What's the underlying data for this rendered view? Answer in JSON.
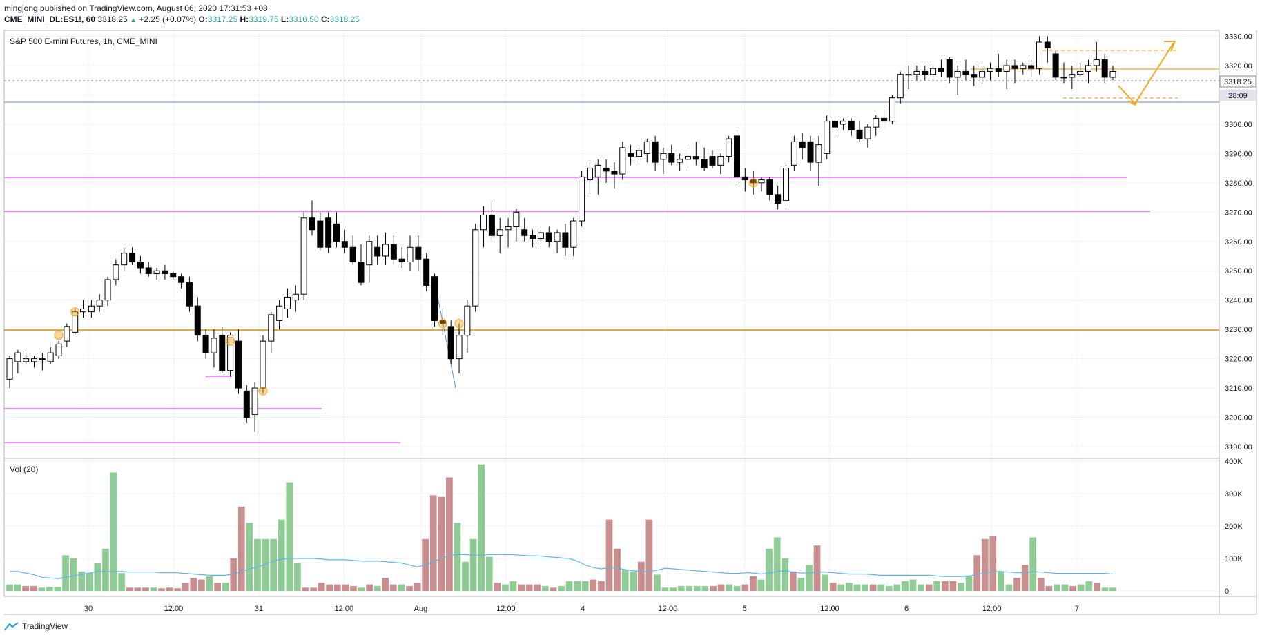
{
  "header": {
    "published_line": "mingjong published on TradingView.com, August 06, 2020 17:31:53 +08",
    "symbol": "CME_MINI_DL:ES1!, 60",
    "last_price": "3318.25",
    "change": "+2.25 (+0.07%)",
    "open_label": "O:",
    "open": "3317.25",
    "high_label": "H:",
    "high": "3319.75",
    "low_label": "L:",
    "low": "3316.50",
    "close_label": "C:",
    "close": "3318.25"
  },
  "chart_title": "S&P 500 E-mini Futures, 1h, CME_MINI",
  "volume_label": "Vol (20)",
  "footer": {
    "brand": "TradingView"
  },
  "colors": {
    "up_candle": "#ffffff",
    "down_candle": "#000000",
    "vol_up": "#8fcb95",
    "vol_down": "#c98f8f",
    "vol_ma": "#5fb4e8",
    "orange": "#f5a623",
    "magenta": "#e040fb",
    "blue_line": "#5c8ecf"
  },
  "chart_data": {
    "type": "candlestick",
    "x_tick_labels": [
      "30",
      "12:00",
      "31",
      "12:00",
      "Aug",
      "12:00",
      "4",
      "12:00",
      "5",
      "12:00",
      "6",
      "12:00",
      "7"
    ],
    "y_tick_labels": [
      "3330.00",
      "3320.00",
      "3310.00",
      "3300.00",
      "3290.00",
      "3280.00",
      "3270.00",
      "3260.00",
      "3250.00",
      "3240.00",
      "3230.00",
      "3220.00",
      "3210.00",
      "3200.00",
      "3190.00"
    ],
    "y_ticks": [
      3330,
      3320,
      3310,
      3300,
      3290,
      3280,
      3270,
      3260,
      3250,
      3240,
      3230,
      3220,
      3210,
      3200,
      3190
    ],
    "ylim": [
      3186,
      3332
    ],
    "last_price_label": "3318.25",
    "countdown_label": "28:09",
    "volume_tick_labels": [
      "400K",
      "300K",
      "200K",
      "100K",
      "0"
    ],
    "volume_ticks": [
      400000,
      300000,
      200000,
      100000,
      0
    ],
    "ohlc": [
      [
        3213,
        3221,
        3210,
        3220
      ],
      [
        3219,
        3223,
        3215,
        3222
      ],
      [
        3219,
        3222,
        3218,
        3220
      ],
      [
        3219,
        3221,
        3217,
        3220
      ],
      [
        3220,
        3222,
        3216,
        3220
      ],
      [
        3219,
        3224,
        3218,
        3222
      ],
      [
        3221,
        3226,
        3220,
        3225
      ],
      [
        3226,
        3232,
        3224,
        3231
      ],
      [
        3229,
        3237,
        3228,
        3236
      ],
      [
        3236,
        3240,
        3234,
        3237
      ],
      [
        3236,
        3240,
        3234,
        3238
      ],
      [
        3238,
        3242,
        3236,
        3240
      ],
      [
        3240,
        3248,
        3238,
        3247
      ],
      [
        3247,
        3254,
        3245,
        3252
      ],
      [
        3252,
        3258,
        3250,
        3256
      ],
      [
        3256,
        3258,
        3252,
        3253
      ],
      [
        3253,
        3255,
        3249,
        3251
      ],
      [
        3251,
        3253,
        3248,
        3249
      ],
      [
        3249,
        3251,
        3247,
        3250
      ],
      [
        3250,
        3252,
        3247,
        3249
      ],
      [
        3249,
        3250,
        3247,
        3248
      ],
      [
        3248,
        3249,
        3244,
        3246
      ],
      [
        3246,
        3248,
        3236,
        3238
      ],
      [
        3238,
        3241,
        3226,
        3228
      ],
      [
        3228,
        3230,
        3220,
        3222
      ],
      [
        3222,
        3230,
        3217,
        3227
      ],
      [
        3228,
        3231,
        3215,
        3216
      ],
      [
        3216,
        3229,
        3214,
        3228
      ],
      [
        3226,
        3230,
        3208,
        3210
      ],
      [
        3209,
        3211,
        3198,
        3200
      ],
      [
        3201,
        3212,
        3195,
        3210
      ],
      [
        3210,
        3228,
        3208,
        3226
      ],
      [
        3226,
        3236,
        3222,
        3235
      ],
      [
        3233,
        3240,
        3230,
        3238
      ],
      [
        3237,
        3244,
        3234,
        3241
      ],
      [
        3240,
        3245,
        3236,
        3242
      ],
      [
        3242,
        3270,
        3240,
        3268
      ],
      [
        3268,
        3274,
        3262,
        3264
      ],
      [
        3267,
        3270,
        3257,
        3258
      ],
      [
        3268,
        3270,
        3256,
        3258
      ],
      [
        3266,
        3270,
        3258,
        3260
      ],
      [
        3260,
        3264,
        3256,
        3258
      ],
      [
        3258,
        3262,
        3252,
        3253
      ],
      [
        3253,
        3259,
        3245,
        3246
      ],
      [
        3252,
        3262,
        3246,
        3260
      ],
      [
        3258,
        3262,
        3252,
        3255
      ],
      [
        3255,
        3263,
        3252,
        3259
      ],
      [
        3259,
        3262,
        3252,
        3254
      ],
      [
        3254,
        3258,
        3251,
        3253
      ],
      [
        3253,
        3262,
        3250,
        3258
      ],
      [
        3258,
        3262,
        3250,
        3254
      ],
      [
        3254,
        3256,
        3243,
        3245
      ],
      [
        3248,
        3249,
        3231,
        3233
      ],
      [
        3233,
        3237,
        3228,
        3232
      ],
      [
        3231,
        3233,
        3218,
        3220
      ],
      [
        3220,
        3232,
        3215,
        3228
      ],
      [
        3228,
        3240,
        3222,
        3238
      ],
      [
        3238,
        3266,
        3236,
        3264
      ],
      [
        3264,
        3272,
        3258,
        3269
      ],
      [
        3269,
        3274,
        3260,
        3262
      ],
      [
        3262,
        3268,
        3256,
        3264
      ],
      [
        3264,
        3268,
        3258,
        3265
      ],
      [
        3265,
        3271,
        3260,
        3270
      ],
      [
        3264,
        3268,
        3260,
        3262
      ],
      [
        3262,
        3264,
        3258,
        3261
      ],
      [
        3261,
        3264,
        3259,
        3263
      ],
      [
        3263,
        3265,
        3258,
        3260
      ],
      [
        3260,
        3264,
        3256,
        3263
      ],
      [
        3263,
        3266,
        3255,
        3258
      ],
      [
        3258,
        3268,
        3255,
        3267
      ],
      [
        3267,
        3284,
        3265,
        3282
      ],
      [
        3281,
        3287,
        3276,
        3285
      ],
      [
        3282,
        3288,
        3276,
        3286
      ],
      [
        3285,
        3288,
        3280,
        3284
      ],
      [
        3284,
        3287,
        3278,
        3283
      ],
      [
        3283,
        3294,
        3281,
        3292
      ],
      [
        3290,
        3293,
        3286,
        3289
      ],
      [
        3289,
        3292,
        3286,
        3291
      ],
      [
        3290,
        3295,
        3287,
        3294
      ],
      [
        3294,
        3296,
        3284,
        3287
      ],
      [
        3288,
        3292,
        3283,
        3290
      ],
      [
        3290,
        3293,
        3286,
        3287
      ],
      [
        3287,
        3290,
        3284,
        3288
      ],
      [
        3288,
        3292,
        3285,
        3289
      ],
      [
        3289,
        3294,
        3286,
        3288
      ],
      [
        3288,
        3292,
        3284,
        3285
      ],
      [
        3289,
        3291,
        3285,
        3286
      ],
      [
        3286,
        3290,
        3283,
        3289
      ],
      [
        3289,
        3296,
        3287,
        3295
      ],
      [
        3296,
        3298,
        3280,
        3282
      ],
      [
        3282,
        3285,
        3277,
        3281
      ],
      [
        3281,
        3284,
        3276,
        3280
      ],
      [
        3280,
        3282,
        3277,
        3281
      ],
      [
        3281,
        3282,
        3274,
        3276
      ],
      [
        3276,
        3279,
        3271,
        3273
      ],
      [
        3274,
        3286,
        3272,
        3285
      ],
      [
        3286,
        3296,
        3284,
        3294
      ],
      [
        3294,
        3297,
        3288,
        3292
      ],
      [
        3294,
        3296,
        3284,
        3287
      ],
      [
        3287,
        3296,
        3279,
        3293
      ],
      [
        3290,
        3303,
        3288,
        3301
      ],
      [
        3301,
        3302,
        3297,
        3299
      ],
      [
        3300,
        3302,
        3298,
        3301
      ],
      [
        3301,
        3302,
        3296,
        3298
      ],
      [
        3298,
        3301,
        3294,
        3295
      ],
      [
        3295,
        3300,
        3292,
        3299
      ],
      [
        3299,
        3303,
        3296,
        3302
      ],
      [
        3302,
        3305,
        3299,
        3301
      ],
      [
        3301,
        3310,
        3300,
        3309
      ],
      [
        3309,
        3318,
        3307,
        3317
      ],
      [
        3317,
        3320,
        3312,
        3317
      ],
      [
        3317,
        3320,
        3315,
        3318
      ],
      [
        3318,
        3320,
        3315,
        3317
      ],
      [
        3317,
        3320,
        3315,
        3319
      ],
      [
        3319,
        3322,
        3316,
        3318
      ],
      [
        3322,
        3323,
        3314,
        3316
      ],
      [
        3316,
        3320,
        3310,
        3318
      ],
      [
        3318,
        3322,
        3315,
        3317
      ],
      [
        3317,
        3320,
        3313,
        3316
      ],
      [
        3316,
        3320,
        3314,
        3318
      ],
      [
        3318,
        3321,
        3315,
        3319
      ],
      [
        3319,
        3324,
        3316,
        3318
      ],
      [
        3318,
        3322,
        3312,
        3320
      ],
      [
        3320,
        3322,
        3314,
        3319
      ],
      [
        3319,
        3321,
        3317,
        3320
      ],
      [
        3320,
        3322,
        3316,
        3319
      ],
      [
        3319,
        3330,
        3317,
        3328
      ],
      [
        3328,
        3330,
        3321,
        3326
      ],
      [
        3324,
        3325,
        3315,
        3316
      ],
      [
        3316,
        3321,
        3314,
        3316
      ],
      [
        3316,
        3320,
        3312,
        3317
      ],
      [
        3317,
        3321,
        3316,
        3318
      ],
      [
        3318,
        3322,
        3314,
        3320
      ],
      [
        3320,
        3328,
        3318,
        3322
      ],
      [
        3322,
        3324,
        3314,
        3316
      ],
      [
        3316,
        3320,
        3315,
        3318
      ]
    ],
    "volume": [
      20,
      20,
      15,
      15,
      10,
      12,
      12,
      110,
      100,
      60,
      55,
      85,
      130,
      365,
      55,
      10,
      10,
      10,
      10,
      8,
      10,
      8,
      25,
      40,
      35,
      45,
      25,
      25,
      100,
      260,
      210,
      160,
      160,
      160,
      220,
      335,
      85,
      10,
      10,
      25,
      20,
      20,
      20,
      15,
      10,
      20,
      15,
      40,
      20,
      20,
      15,
      25,
      160,
      295,
      290,
      350,
      210,
      90,
      160,
      390,
      105,
      25,
      20,
      30,
      20,
      20,
      20,
      15,
      10,
      15,
      30,
      30,
      30,
      35,
      30,
      220,
      130,
      65,
      60,
      90,
      220,
      50,
      10,
      10,
      15,
      15,
      15,
      15,
      15,
      20,
      20,
      15,
      20,
      45,
      35,
      130,
      165,
      100,
      60,
      40,
      80,
      140,
      50,
      25,
      20,
      25,
      20,
      20,
      20,
      20,
      15,
      20,
      30,
      35,
      20,
      20,
      30,
      30,
      30,
      25,
      45,
      110,
      160,
      170,
      60,
      20,
      40,
      80,
      165,
      40,
      15,
      20,
      20,
      15,
      20,
      30,
      25,
      10,
      10
    ],
    "volume_up": [
      true,
      true,
      false,
      false,
      true,
      true,
      true,
      true,
      true,
      true,
      true,
      true,
      true,
      true,
      true,
      false,
      false,
      false,
      true,
      false,
      false,
      false,
      false,
      false,
      false,
      true,
      false,
      true,
      false,
      false,
      true,
      true,
      true,
      true,
      true,
      true,
      true,
      false,
      false,
      false,
      false,
      false,
      false,
      false,
      true,
      false,
      true,
      false,
      false,
      true,
      false,
      false,
      false,
      false,
      false,
      false,
      true,
      true,
      true,
      true,
      true,
      false,
      true,
      true,
      false,
      false,
      false,
      true,
      false,
      true,
      true,
      true,
      true,
      false,
      false,
      false,
      false,
      true,
      true,
      false,
      false,
      true,
      true,
      true,
      true,
      true,
      true,
      true,
      false,
      false,
      true,
      true,
      false,
      false,
      true,
      true,
      true,
      true,
      false,
      true,
      true,
      false,
      true,
      false,
      true,
      true,
      true,
      true,
      false,
      true,
      true,
      true,
      true,
      true,
      true,
      false,
      true,
      false,
      false,
      true,
      true,
      false,
      false,
      false,
      true,
      true,
      false,
      false,
      true,
      false,
      false,
      true,
      true,
      false,
      true,
      true,
      false,
      true,
      true
    ],
    "volume_ma": [
      60,
      60,
      55,
      50,
      42,
      40,
      38,
      42,
      46,
      50,
      55,
      60,
      60,
      60,
      60,
      58,
      58,
      58,
      58,
      56,
      56,
      56,
      54,
      52,
      50,
      48,
      48,
      48,
      52,
      60,
      68,
      74,
      82,
      92,
      98,
      100,
      100,
      100,
      100,
      98,
      96,
      96,
      96,
      94,
      92,
      92,
      92,
      90,
      88,
      86,
      80,
      74,
      80,
      90,
      100,
      110,
      112,
      112,
      110,
      110,
      112,
      112,
      112,
      112,
      110,
      108,
      108,
      106,
      104,
      102,
      100,
      92,
      80,
      72,
      68,
      72,
      70,
      66,
      62,
      60,
      60,
      64,
      70,
      68,
      66,
      64,
      62,
      60,
      58,
      56,
      54,
      54,
      56,
      55,
      52,
      55,
      60,
      62,
      58,
      55,
      56,
      58,
      58,
      56,
      54,
      52,
      52,
      52,
      50,
      48,
      48,
      48,
      48,
      48,
      48,
      48,
      46,
      44,
      44,
      44,
      46,
      50,
      55,
      60,
      60,
      58,
      56,
      56,
      60,
      58,
      56,
      54,
      54,
      54,
      54,
      54,
      54,
      54,
      52
    ],
    "volume_ylim": [
      0,
      400000
    ]
  }
}
